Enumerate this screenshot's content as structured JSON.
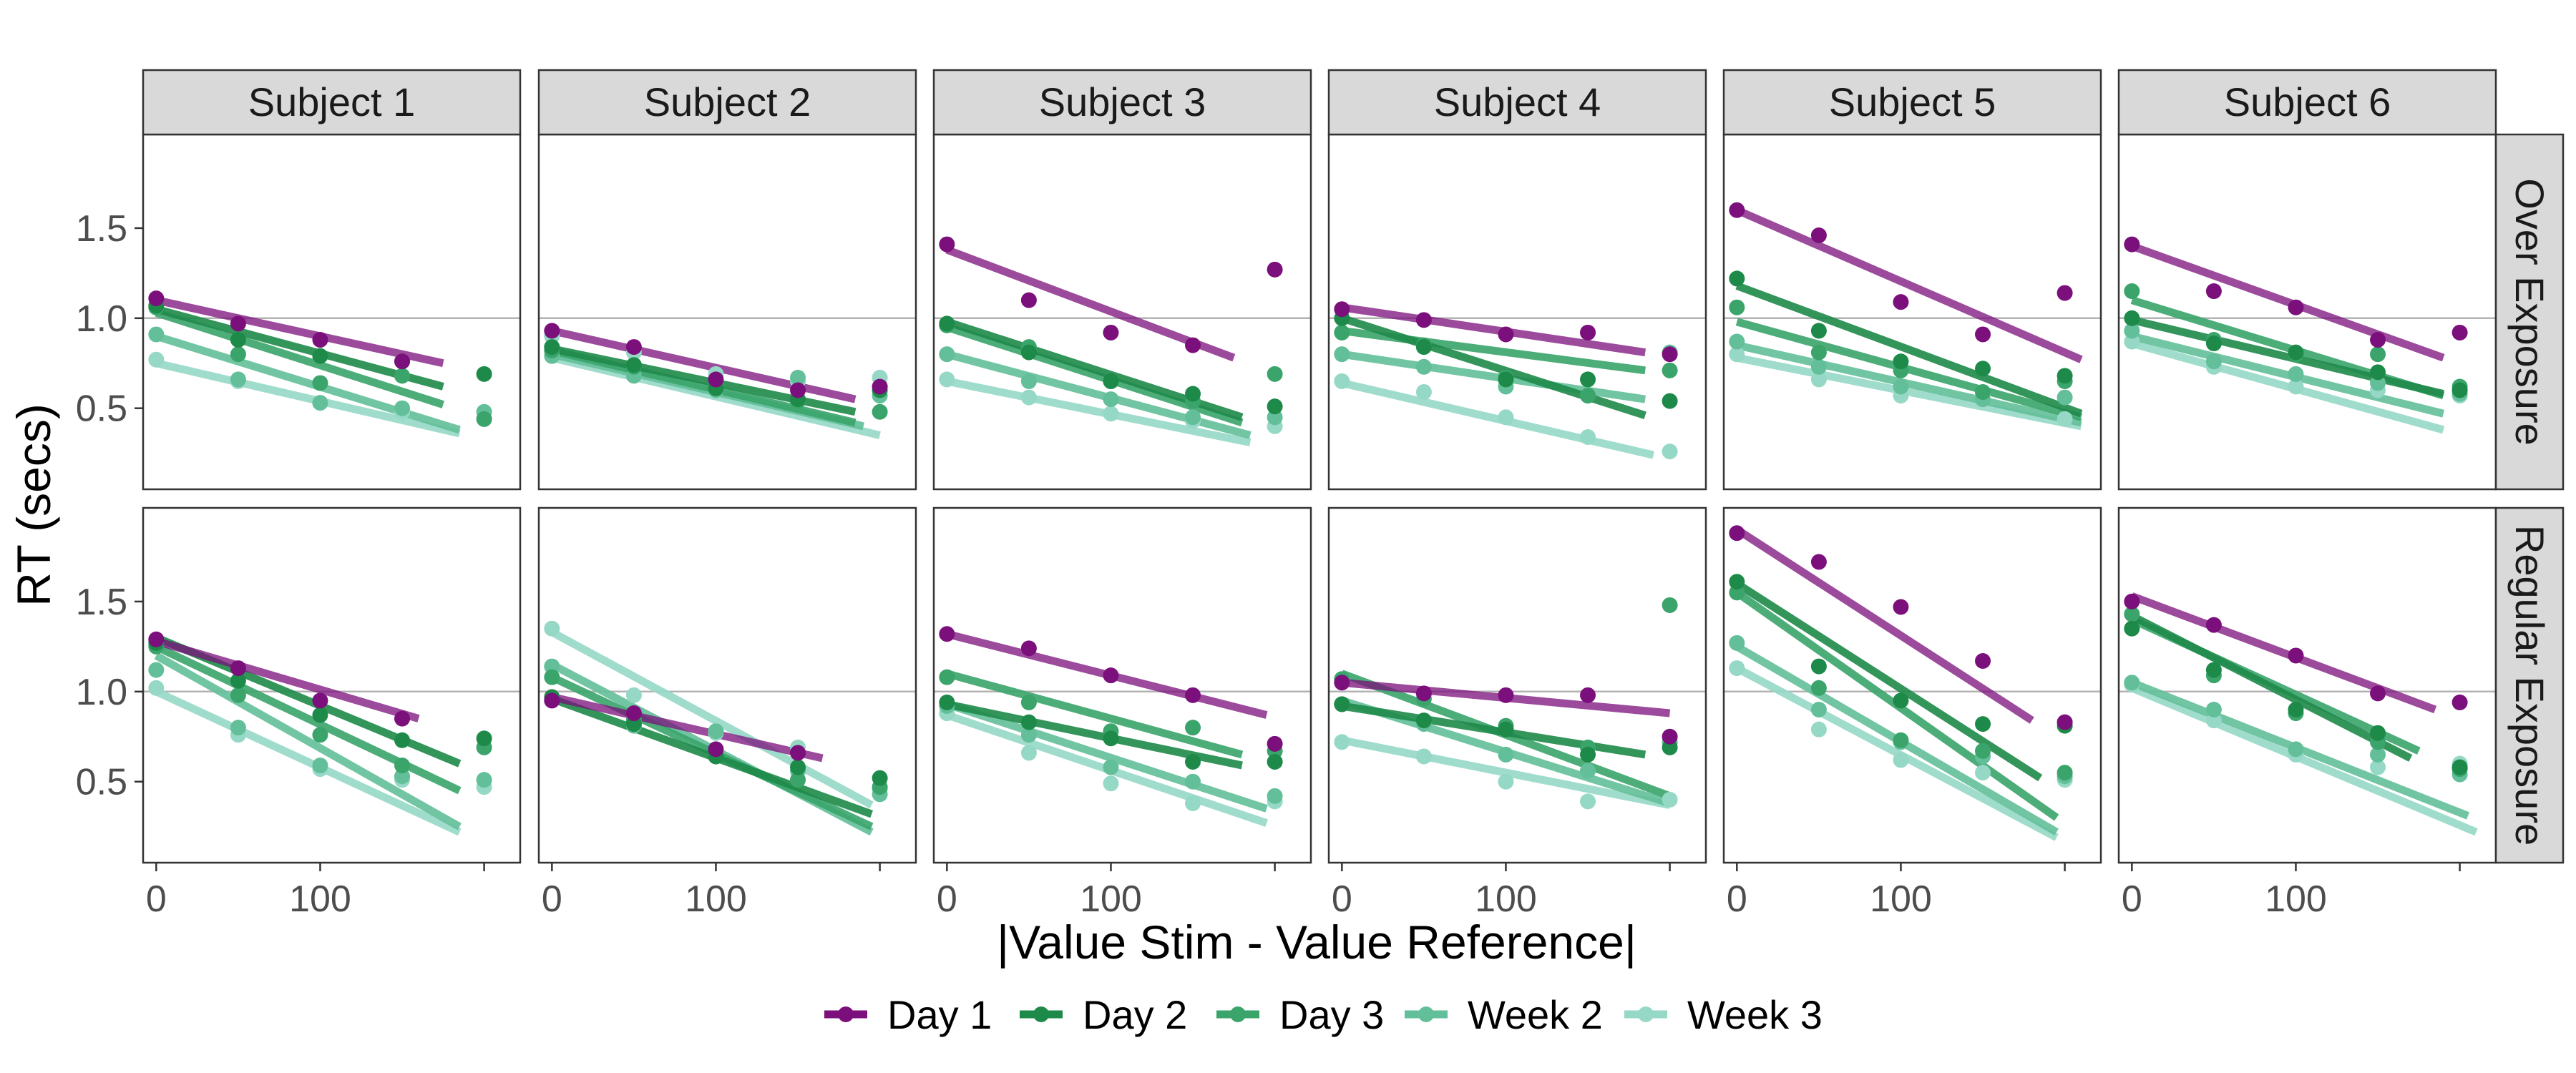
{
  "chart_data": {
    "type": "scatter",
    "xlabel": "|Value Stim - Value Reference|",
    "ylabel": "RT (secs)",
    "xlim": [
      -8,
      222
    ],
    "ylim": [
      0.05,
      2.02
    ],
    "x_ticks": [
      0,
      100
    ],
    "y_ticks": [
      0.5,
      1.0,
      1.5
    ],
    "y_tick_labels": [
      "0.5",
      "1.0",
      "1.5"
    ],
    "reference_line_y": 1.0,
    "grid": false,
    "legend_position": "bottom",
    "columns": [
      "Subject 1",
      "Subject 2",
      "Subject 3",
      "Subject 4",
      "Subject 5",
      "Subject 6"
    ],
    "rows": [
      "Over Exposure",
      "Regular Exposure"
    ],
    "series": [
      {
        "name": "Day 1",
        "color": "#7b0f7b"
      },
      {
        "name": "Day 2",
        "color": "#1e8a49"
      },
      {
        "name": "Day 3",
        "color": "#3aa46a"
      },
      {
        "name": "Week 2",
        "color": "#63bf99"
      },
      {
        "name": "Week 3",
        "color": "#96d8c6"
      }
    ],
    "x_points": [
      0,
      50,
      100,
      150,
      200
    ],
    "panels": [
      [
        {
          "points": [
            [
              1.11,
              0.97,
              0.88,
              0.76,
              null
            ],
            [
              1.07,
              0.88,
              0.79,
              0.76,
              0.69
            ],
            [
              1.06,
              0.8,
              0.64,
              0.68,
              0.44
            ],
            [
              0.91,
              0.66,
              0.53,
              0.5,
              0.48
            ],
            [
              0.77,
              0.65,
              0.53,
              0.48,
              0.44
            ]
          ],
          "lines": [
            [
              0,
              1.1,
              175,
              0.75
            ],
            [
              0,
              1.05,
              175,
              0.62
            ],
            [
              0,
              1.03,
              175,
              0.52
            ],
            [
              0,
              0.9,
              185,
              0.38
            ],
            [
              0,
              0.75,
              185,
              0.36
            ]
          ]
        },
        {
          "points": [
            [
              0.93,
              0.84,
              0.66,
              0.6,
              0.62
            ],
            [
              0.84,
              0.74,
              0.61,
              0.55,
              0.6
            ],
            [
              0.82,
              0.73,
              0.63,
              0.54,
              0.48
            ],
            [
              0.79,
              0.68,
              0.6,
              0.67,
              0.57
            ],
            [
              0.9,
              0.81,
              0.69,
              0.65,
              0.67
            ]
          ],
          "lines": [
            [
              0,
              0.93,
              185,
              0.55
            ],
            [
              0,
              0.83,
              185,
              0.48
            ],
            [
              0,
              0.82,
              185,
              0.42
            ],
            [
              0,
              0.8,
              190,
              0.4
            ],
            [
              0,
              0.78,
              200,
              0.35
            ]
          ]
        },
        {
          "points": [
            [
              1.41,
              1.1,
              0.92,
              0.85,
              1.27
            ],
            [
              0.97,
              0.81,
              0.65,
              0.58,
              0.51
            ],
            [
              0.96,
              0.84,
              0.65,
              0.54,
              0.69
            ],
            [
              0.8,
              0.65,
              0.55,
              0.45,
              0.45
            ],
            [
              0.66,
              0.56,
              0.47,
              0.43,
              0.4
            ]
          ],
          "lines": [
            [
              0,
              1.38,
              175,
              0.78
            ],
            [
              0,
              0.98,
              180,
              0.45
            ],
            [
              0,
              0.95,
              180,
              0.42
            ],
            [
              0,
              0.8,
              185,
              0.35
            ],
            [
              0,
              0.65,
              185,
              0.31
            ]
          ]
        },
        {
          "points": [
            [
              1.05,
              0.99,
              0.91,
              0.92,
              0.8
            ],
            [
              1.0,
              0.84,
              0.66,
              0.66,
              0.54
            ],
            [
              0.92,
              0.85,
              0.67,
              0.57,
              0.71
            ],
            [
              0.8,
              0.73,
              0.62,
              0.57,
              0.81
            ],
            [
              0.65,
              0.59,
              0.45,
              0.34,
              0.26
            ]
          ],
          "lines": [
            [
              0,
              1.06,
              185,
              0.81
            ],
            [
              0,
              1.0,
              185,
              0.46
            ],
            [
              0,
              0.93,
              185,
              0.71
            ],
            [
              0,
              0.8,
              185,
              0.55
            ],
            [
              0,
              0.64,
              190,
              0.24
            ]
          ]
        },
        {
          "points": [
            [
              1.6,
              1.46,
              1.09,
              0.91,
              1.14
            ],
            [
              1.22,
              0.93,
              0.76,
              0.72,
              0.68
            ],
            [
              1.06,
              0.81,
              0.71,
              0.59,
              0.65
            ],
            [
              0.87,
              0.73,
              0.62,
              0.55,
              0.56
            ],
            [
              0.8,
              0.66,
              0.57,
              0.58,
              0.44
            ]
          ],
          "lines": [
            [
              0,
              1.6,
              210,
              0.77
            ],
            [
              0,
              1.18,
              210,
              0.47
            ],
            [
              0,
              0.98,
              210,
              0.45
            ],
            [
              0,
              0.85,
              210,
              0.42
            ],
            [
              0,
              0.78,
              210,
              0.4
            ]
          ]
        },
        {
          "points": [
            [
              1.41,
              1.15,
              1.06,
              0.88,
              0.92
            ],
            [
              1.0,
              0.86,
              0.81,
              0.7,
              0.6
            ],
            [
              1.15,
              0.88,
              0.8,
              0.8,
              0.62
            ],
            [
              0.93,
              0.76,
              0.69,
              0.64,
              0.58
            ],
            [
              0.87,
              0.73,
              0.62,
              0.6,
              0.57
            ]
          ],
          "lines": [
            [
              0,
              1.4,
              190,
              0.78
            ],
            [
              0,
              0.99,
              190,
              0.58
            ],
            [
              0,
              1.1,
              190,
              0.57
            ],
            [
              0,
              0.9,
              190,
              0.47
            ],
            [
              0,
              0.86,
              190,
              0.38
            ]
          ]
        }
      ],
      [
        {
          "points": [
            [
              1.29,
              1.13,
              0.95,
              0.85,
              null
            ],
            [
              1.27,
              1.06,
              0.87,
              0.73,
              0.74
            ],
            [
              1.25,
              0.98,
              0.76,
              0.59,
              0.69
            ],
            [
              1.12,
              0.8,
              0.59,
              0.53,
              0.51
            ],
            [
              1.02,
              0.76,
              0.57,
              0.51,
              0.47
            ]
          ],
          "lines": [
            [
              0,
              1.28,
              160,
              0.85
            ],
            [
              0,
              1.3,
              185,
              0.6
            ],
            [
              0,
              1.25,
              185,
              0.45
            ],
            [
              0,
              1.2,
              185,
              0.25
            ],
            [
              0,
              1.0,
              185,
              0.22
            ]
          ]
        },
        {
          "points": [
            [
              0.95,
              0.88,
              0.68,
              0.66,
              null
            ],
            [
              0.97,
              0.82,
              0.64,
              0.58,
              0.52
            ],
            [
              1.08,
              0.84,
              0.64,
              0.51,
              0.47
            ],
            [
              1.14,
              0.81,
              0.78,
              0.56,
              0.43
            ],
            [
              1.35,
              0.98,
              0.77,
              0.69,
              0.46
            ]
          ],
          "lines": [
            [
              0,
              0.97,
              165,
              0.63
            ],
            [
              0,
              0.96,
              195,
              0.32
            ],
            [
              0,
              1.08,
              195,
              0.25
            ],
            [
              0,
              1.15,
              195,
              0.22
            ],
            [
              0,
              1.33,
              195,
              0.37
            ]
          ]
        },
        {
          "points": [
            [
              1.32,
              1.24,
              1.09,
              0.98,
              0.71
            ],
            [
              0.94,
              0.83,
              0.74,
              0.61,
              0.61
            ],
            [
              1.08,
              0.94,
              0.78,
              0.8,
              0.67
            ],
            [
              0.92,
              0.76,
              0.58,
              0.5,
              0.42
            ],
            [
              0.88,
              0.66,
              0.49,
              0.38,
              0.39
            ]
          ],
          "lines": [
            [
              0,
              1.32,
              195,
              0.87
            ],
            [
              0,
              0.93,
              180,
              0.59
            ],
            [
              0,
              1.1,
              180,
              0.65
            ],
            [
              0,
              0.93,
              195,
              0.35
            ],
            [
              0,
              0.87,
              195,
              0.27
            ]
          ]
        },
        {
          "points": [
            [
              1.05,
              0.99,
              0.98,
              0.98,
              0.75
            ],
            [
              0.93,
              0.84,
              0.79,
              0.65,
              0.69
            ],
            [
              1.07,
              0.96,
              0.81,
              0.69,
              1.48
            ],
            [
              0.93,
              0.82,
              0.65,
              0.56,
              0.72
            ],
            [
              0.72,
              0.64,
              0.5,
              0.39,
              0.4
            ]
          ],
          "lines": [
            [
              0,
              1.05,
              200,
              0.88
            ],
            [
              0,
              0.92,
              185,
              0.65
            ],
            [
              0,
              1.1,
              200,
              0.42
            ],
            [
              0,
              0.95,
              200,
              0.38
            ],
            [
              0,
              0.73,
              200,
              0.37
            ]
          ]
        },
        {
          "points": [
            [
              1.88,
              1.72,
              1.47,
              1.17,
              0.83
            ],
            [
              1.61,
              1.14,
              0.95,
              0.82,
              0.81
            ],
            [
              1.55,
              1.02,
              0.73,
              0.67,
              0.55
            ],
            [
              1.27,
              0.9,
              0.72,
              0.64,
              0.53
            ],
            [
              1.13,
              0.79,
              0.62,
              0.55,
              0.51
            ]
          ],
          "lines": [
            [
              0,
              1.9,
              180,
              0.84
            ],
            [
              0,
              1.6,
              185,
              0.52
            ],
            [
              0,
              1.55,
              195,
              0.3
            ],
            [
              0,
              1.25,
              195,
              0.22
            ],
            [
              0,
              1.13,
              195,
              0.19
            ]
          ]
        },
        {
          "points": [
            [
              1.5,
              1.37,
              1.2,
              0.99,
              0.94
            ],
            [
              1.35,
              1.12,
              0.9,
              0.77,
              0.58
            ],
            [
              1.43,
              1.09,
              0.88,
              0.72,
              0.57
            ],
            [
              1.05,
              0.9,
              0.68,
              0.65,
              0.54
            ],
            [
              1.04,
              0.84,
              0.65,
              0.58,
              0.6
            ]
          ],
          "lines": [
            [
              0,
              1.53,
              185,
              0.9
            ],
            [
              0,
              1.42,
              170,
              0.63
            ],
            [
              0,
              1.4,
              175,
              0.67
            ],
            [
              0,
              1.05,
              205,
              0.31
            ],
            [
              0,
              1.02,
              210,
              0.22
            ]
          ]
        }
      ]
    ]
  }
}
